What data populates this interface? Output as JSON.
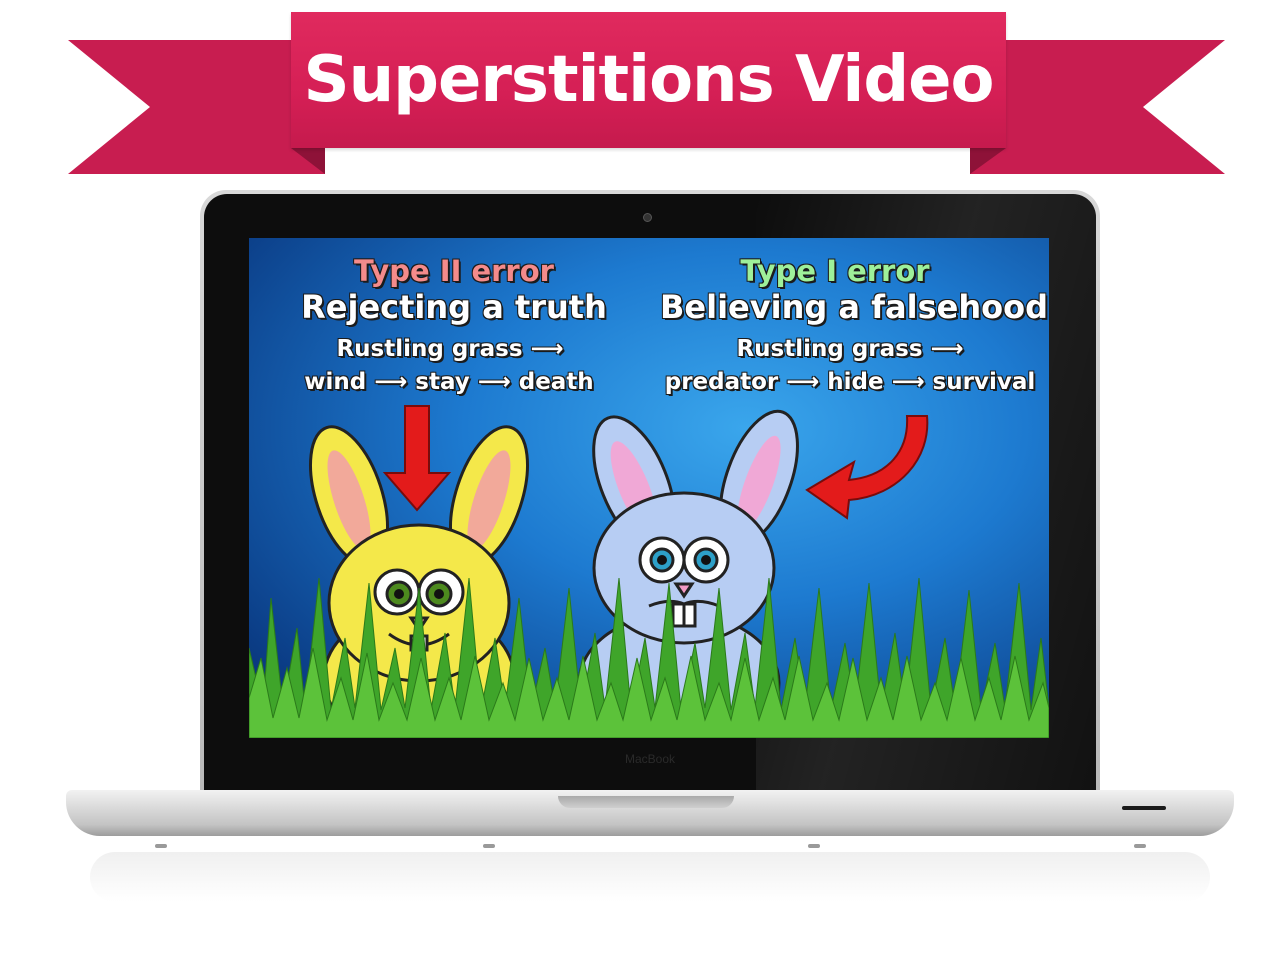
{
  "banner": {
    "title": "Superstitions Video",
    "color": "#d51f55"
  },
  "slide": {
    "left": {
      "heading": "Type II error",
      "subheading": "Rejecting a truth",
      "line1": "Rustling grass ⟶",
      "line2": "wind ⟶ stay ⟶ death",
      "heading_color": "#f48b8b"
    },
    "right": {
      "heading": "Type I error",
      "subheading": "Believing a falsehood",
      "line1": "Rustling grass ⟶",
      "line2": "predator ⟶ hide ⟶ survival",
      "heading_color": "#9ef09a"
    },
    "background_color": "#1d7ad0",
    "grass_color": "#3fa52a"
  },
  "laptop": {
    "brand": "MacBook"
  }
}
